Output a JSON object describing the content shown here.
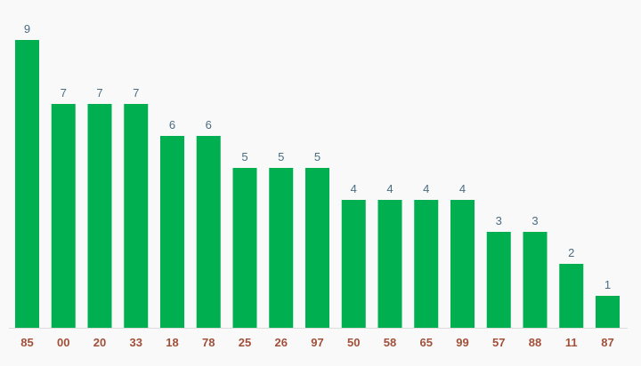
{
  "chart_data": {
    "type": "bar",
    "title": "",
    "xlabel": "",
    "ylabel": "",
    "ylim": [
      0,
      9
    ],
    "grid": false,
    "legend": "none",
    "categories": [
      "85",
      "00",
      "20",
      "33",
      "18",
      "78",
      "25",
      "26",
      "97",
      "50",
      "58",
      "65",
      "99",
      "57",
      "88",
      "11",
      "87"
    ],
    "values": [
      9,
      7,
      7,
      7,
      6,
      6,
      5,
      5,
      5,
      4,
      4,
      4,
      4,
      3,
      3,
      2,
      1
    ],
    "colors": {
      "bar": "#00b050",
      "value_label": "#4a6d82",
      "category_label": "#a0503a",
      "baseline": "#dddddd",
      "background": "#f9f9f9"
    }
  }
}
